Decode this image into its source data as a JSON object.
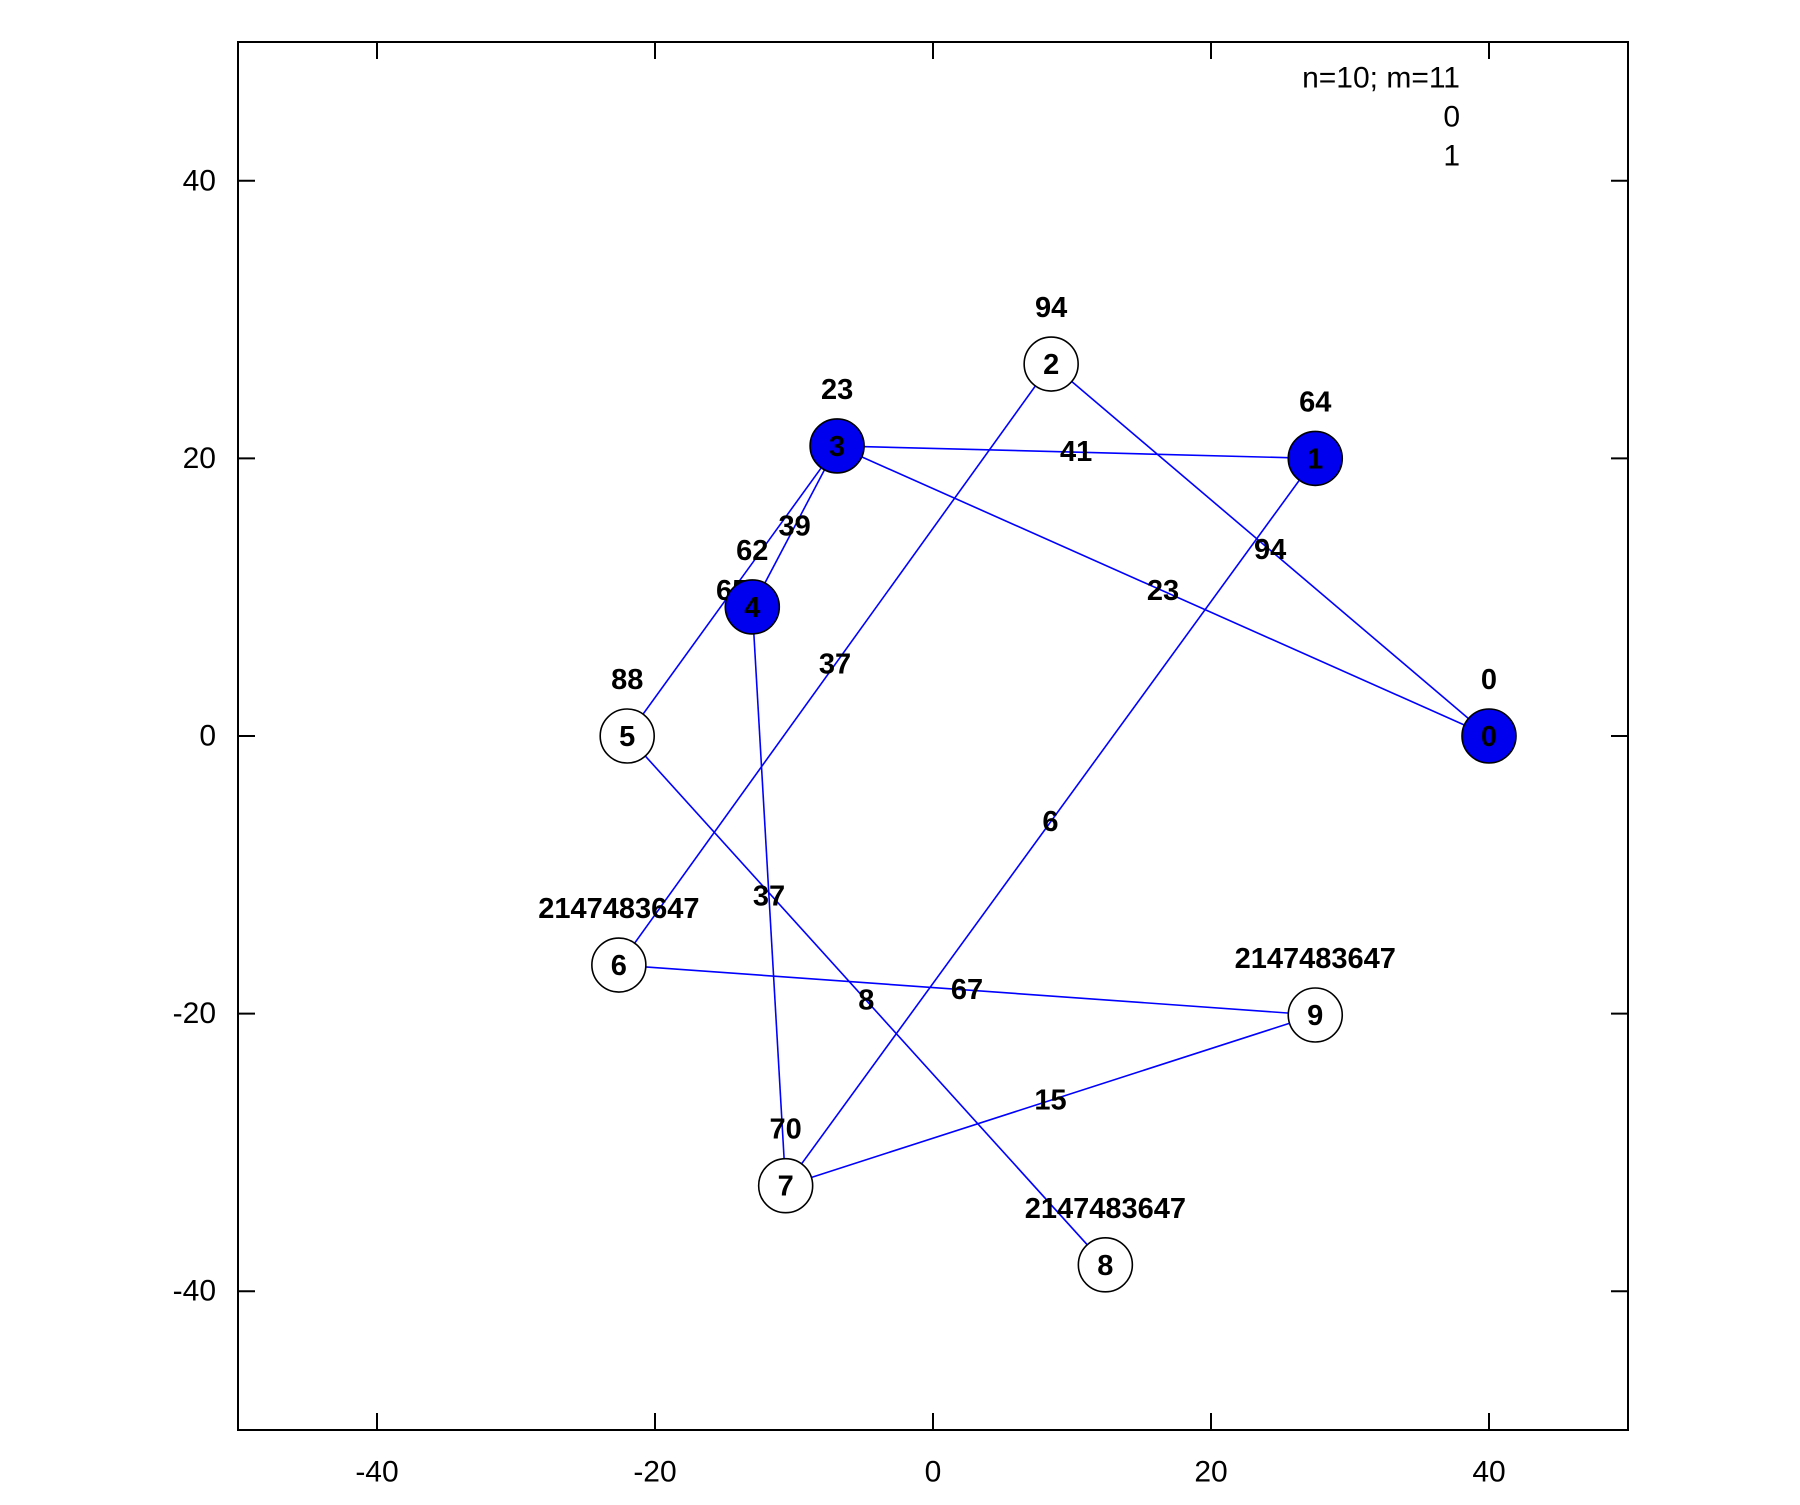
{
  "chart_data": {
    "type": "graph",
    "title": "",
    "xlabel": "",
    "ylabel": "",
    "xlim": [
      -50,
      50
    ],
    "ylim": [
      -50,
      50
    ],
    "xticks": [
      -40,
      -20,
      0,
      20,
      40
    ],
    "yticks": [
      -40,
      -20,
      0,
      20,
      40
    ],
    "grid": false,
    "legend": {
      "placement": "top-right",
      "lines": [
        "n=10; m=11",
        "0",
        "1"
      ]
    },
    "colors": {
      "edge": "#0000ff",
      "selected_node_fill": "#0000ee",
      "node_fill": "#ffffff",
      "node_stroke": "#000000"
    },
    "nodes": [
      {
        "id": "0",
        "x": 40.0,
        "y": 0.0,
        "value": "0",
        "selected": true
      },
      {
        "id": "1",
        "x": 27.5,
        "y": 20.0,
        "value": "64",
        "selected": true
      },
      {
        "id": "2",
        "x": 8.5,
        "y": 26.8,
        "value": "94",
        "selected": false
      },
      {
        "id": "3",
        "x": -6.9,
        "y": 20.9,
        "value": "23",
        "selected": true
      },
      {
        "id": "4",
        "x": -13.0,
        "y": 9.3,
        "value": "62",
        "selected": true
      },
      {
        "id": "5",
        "x": -22.0,
        "y": 0.0,
        "value": "88",
        "selected": false
      },
      {
        "id": "6",
        "x": -22.6,
        "y": -16.5,
        "value": "2147483647",
        "selected": false
      },
      {
        "id": "7",
        "x": -10.6,
        "y": -32.4,
        "value": "70",
        "selected": false
      },
      {
        "id": "8",
        "x": 12.4,
        "y": -38.1,
        "value": "2147483647",
        "selected": false
      },
      {
        "id": "9",
        "x": 27.5,
        "y": -20.1,
        "value": "2147483647",
        "selected": false
      }
    ],
    "edges": [
      {
        "source": "3",
        "target": "1",
        "weight": "41"
      },
      {
        "source": "2",
        "target": "0",
        "weight": "94"
      },
      {
        "source": "3",
        "target": "0",
        "weight": "23"
      },
      {
        "source": "3",
        "target": "4",
        "weight": "39"
      },
      {
        "source": "3",
        "target": "5",
        "weight": "65"
      },
      {
        "source": "2",
        "target": "6",
        "weight": "37"
      },
      {
        "source": "1",
        "target": "7",
        "weight": "6"
      },
      {
        "source": "4",
        "target": "7",
        "weight": "37"
      },
      {
        "source": "5",
        "target": "8",
        "weight": "8"
      },
      {
        "source": "6",
        "target": "9",
        "weight": "67"
      },
      {
        "source": "7",
        "target": "9",
        "weight": "15"
      }
    ]
  }
}
